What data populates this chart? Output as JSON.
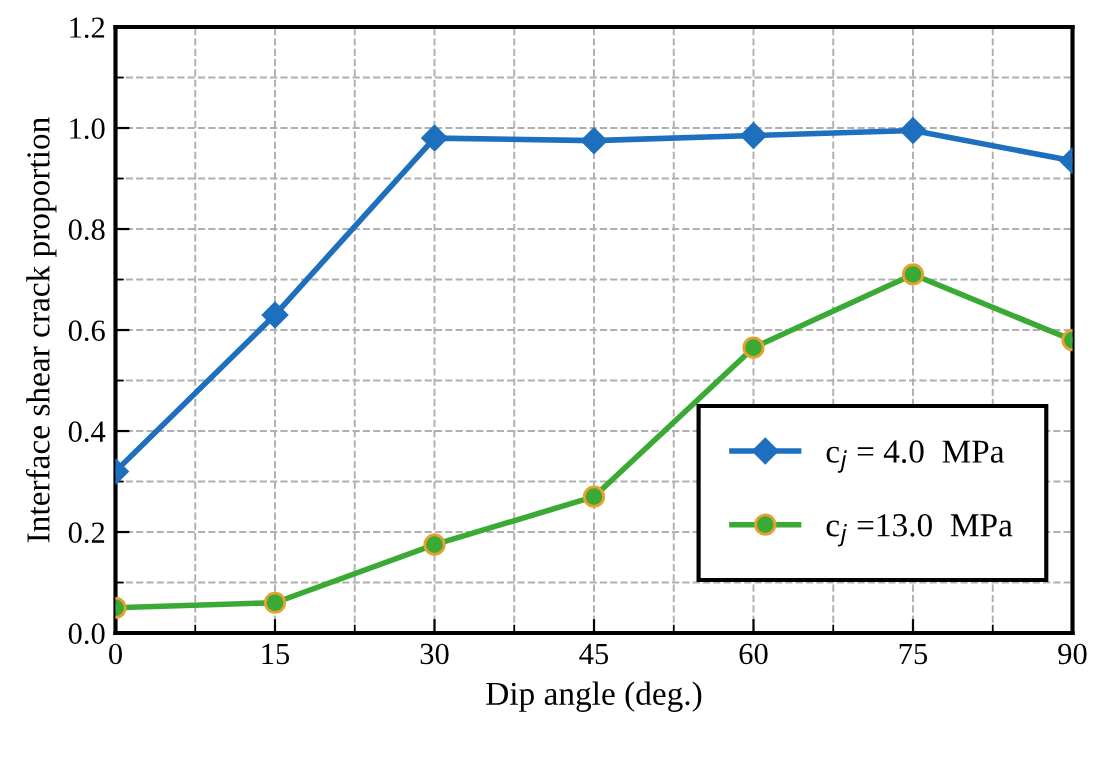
{
  "chart_data": {
    "type": "line",
    "xlabel": "Dip angle (deg.)",
    "ylabel": "Interface shear crack proportion",
    "x": [
      0,
      15,
      30,
      45,
      60,
      75,
      90
    ],
    "series": [
      {
        "name": "c$_{j}$ = 4.0  MPa",
        "color": "#1f6fbf",
        "marker": "diamond",
        "values": [
          0.32,
          0.63,
          0.98,
          0.975,
          0.985,
          0.995,
          0.935
        ]
      },
      {
        "name": "c$_{j}$ =13.0  MPa",
        "color": "#3aaa35",
        "marker": "circle",
        "values": [
          0.05,
          0.06,
          0.175,
          0.27,
          0.565,
          0.71,
          0.58
        ]
      }
    ],
    "xlim": [
      0,
      90
    ],
    "xticks": [
      0,
      15,
      30,
      45,
      60,
      75,
      90
    ],
    "ylim": [
      0,
      1.2
    ],
    "yticks": [
      {
        "value": 0,
        "label": "0.0"
      },
      {
        "value": 0.2,
        "label": "0.2"
      },
      {
        "value": 0.4,
        "label": "0.4"
      },
      {
        "value": 0.6,
        "label": "0.6"
      },
      {
        "value": 0.8,
        "label": "0.8"
      },
      {
        "value": 1.0,
        "label": "1.0"
      },
      {
        "value": 1.2,
        "label": "1.2"
      }
    ],
    "grid": true,
    "legend": "bottom right",
    "line_style": "solid"
  }
}
